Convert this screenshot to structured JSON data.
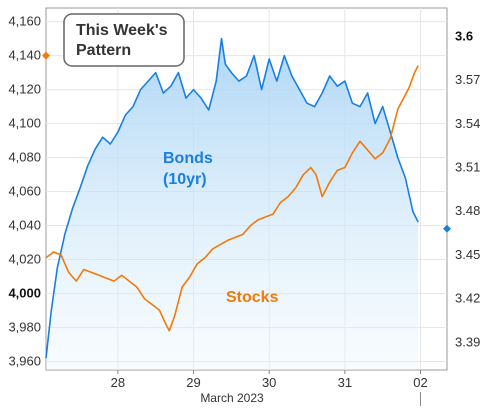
{
  "chart_data": {
    "type": "line",
    "title_lines": [
      "This Week's",
      "Pattern"
    ],
    "xlabel": "March 2023",
    "x_ticks": [
      "28",
      "29",
      "30",
      "31",
      "02"
    ],
    "y_left_ticks": [
      "4,160",
      "4,140",
      "4,120",
      "4,100",
      "4,080",
      "4,060",
      "4,040",
      "4,020",
      "4,000",
      "3,980",
      "3,960"
    ],
    "y_left_bold": "4,000",
    "y_right_ticks": [
      "3.6",
      "3.57",
      "3.54",
      "3.51",
      "3.48",
      "3.45",
      "3.42",
      "3.39"
    ],
    "y_right_bold": "3.6",
    "y_left_range": [
      3955,
      4168
    ],
    "y_right_range": [
      3.371,
      3.6195
    ],
    "x_range": [
      27.05,
      32.35
    ],
    "series": [
      {
        "name": "Bonds\n(10yr)",
        "label_lines": [
          "Bonds",
          "(10yr)"
        ],
        "axis": "left",
        "color": "#1a7fe0",
        "fill": true,
        "x": [
          27.05,
          27.12,
          27.2,
          27.3,
          27.4,
          27.5,
          27.6,
          27.7,
          27.8,
          27.9,
          28.0,
          28.1,
          28.2,
          28.3,
          28.4,
          28.5,
          28.6,
          28.7,
          28.8,
          28.9,
          29.0,
          29.1,
          29.2,
          29.3,
          29.37,
          29.42,
          29.5,
          29.6,
          29.7,
          29.8,
          29.9,
          30.0,
          30.1,
          30.2,
          30.3,
          30.4,
          30.5,
          30.6,
          30.7,
          30.8,
          30.9,
          31.0,
          31.1,
          31.2,
          31.3,
          31.4,
          31.5,
          31.6,
          31.7,
          31.8,
          31.9,
          31.97
        ],
        "y": [
          3962,
          3990,
          4015,
          4035,
          4050,
          4062,
          4075,
          4085,
          4092,
          4088,
          4095,
          4105,
          4110,
          4120,
          4125,
          4130,
          4118,
          4122,
          4130,
          4115,
          4120,
          4115,
          4108,
          4125,
          4150,
          4135,
          4130,
          4125,
          4128,
          4140,
          4120,
          4138,
          4125,
          4140,
          4128,
          4120,
          4112,
          4110,
          4118,
          4128,
          4122,
          4125,
          4112,
          4110,
          4118,
          4100,
          4110,
          4095,
          4080,
          4068,
          4048,
          4042
        ]
      },
      {
        "name": "Stocks",
        "label_lines": [
          "Stocks"
        ],
        "axis": "right",
        "color": "#f07a0a",
        "fill": false,
        "x": [
          27.05,
          27.15,
          27.25,
          27.35,
          27.45,
          27.55,
          27.65,
          27.75,
          27.85,
          27.95,
          28.05,
          28.15,
          28.25,
          28.35,
          28.45,
          28.55,
          28.62,
          28.68,
          28.75,
          28.85,
          28.95,
          29.05,
          29.15,
          29.25,
          29.35,
          29.45,
          29.55,
          29.65,
          29.75,
          29.85,
          29.95,
          30.05,
          30.15,
          30.25,
          30.35,
          30.45,
          30.55,
          30.62,
          30.7,
          30.8,
          30.9,
          31.0,
          31.1,
          31.2,
          31.3,
          31.4,
          31.5,
          31.6,
          31.7,
          31.8,
          31.85,
          31.92,
          31.97
        ],
        "y": [
          3.448,
          3.452,
          3.45,
          3.438,
          3.432,
          3.44,
          3.438,
          3.436,
          3.434,
          3.432,
          3.436,
          3.432,
          3.428,
          3.42,
          3.416,
          3.412,
          3.404,
          3.398,
          3.408,
          3.428,
          3.435,
          3.444,
          3.448,
          3.454,
          3.457,
          3.46,
          3.462,
          3.464,
          3.47,
          3.474,
          3.476,
          3.478,
          3.486,
          3.49,
          3.496,
          3.505,
          3.51,
          3.505,
          3.49,
          3.5,
          3.508,
          3.51,
          3.52,
          3.528,
          3.522,
          3.516,
          3.52,
          3.53,
          3.55,
          3.56,
          3.565,
          3.575,
          3.58
        ]
      }
    ],
    "endpoints": [
      {
        "axis": "left",
        "value": 4140,
        "color": "#f07a0a",
        "side": "left"
      },
      {
        "axis": "right",
        "value": 3.468,
        "color": "#1a7fe0",
        "side": "right"
      }
    ],
    "grid": true,
    "legend": "none"
  }
}
